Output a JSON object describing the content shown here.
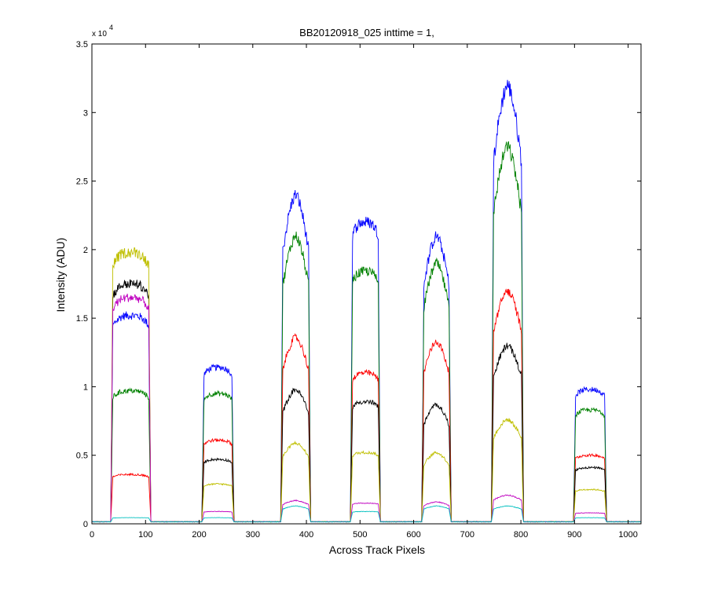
{
  "chart_data": {
    "type": "line",
    "title": "BB20120918_025 inttime = 1,",
    "xlabel": "Across Track Pixels",
    "ylabel": "Intensity (ADU)",
    "y_exponent_label": "x 10",
    "y_exponent": "4",
    "xlim": [
      0,
      1024
    ],
    "ylim": [
      0,
      35000
    ],
    "x_ticks": [
      0,
      100,
      200,
      300,
      400,
      500,
      600,
      700,
      800,
      900,
      1000
    ],
    "y_ticks": [
      0,
      5000,
      10000,
      15000,
      20000,
      25000,
      30000,
      35000
    ],
    "y_tick_labels": [
      "0",
      "0.5",
      "1",
      "1.5",
      "2",
      "2.5",
      "3",
      "3.5"
    ],
    "grid": false,
    "legend": "none",
    "baseline": 150,
    "segments": [
      {
        "x_start": 35,
        "x_end": 110,
        "shape": "flat"
      },
      {
        "x_start": 205,
        "x_end": 265,
        "shape": "flat"
      },
      {
        "x_start": 352,
        "x_end": 408,
        "shape": "peak"
      },
      {
        "x_start": 482,
        "x_end": 538,
        "shape": "flat"
      },
      {
        "x_start": 615,
        "x_end": 670,
        "shape": "peak"
      },
      {
        "x_start": 745,
        "x_end": 805,
        "shape": "peak"
      },
      {
        "x_start": 898,
        "x_end": 960,
        "shape": "flat"
      }
    ],
    "series": [
      {
        "color": "#0000ff",
        "levels": [
          15200,
          11400,
          24000,
          22000,
          21000,
          32000,
          9800
        ]
      },
      {
        "color": "#008000",
        "levels": [
          9700,
          9500,
          21000,
          18400,
          19000,
          27500,
          8300
        ]
      },
      {
        "color": "#ff0000",
        "levels": [
          3600,
          6100,
          13600,
          11000,
          13300,
          17000,
          5000
        ]
      },
      {
        "color": "#000000",
        "levels": [
          17500,
          4700,
          9800,
          8900,
          8700,
          13000,
          4100
        ]
      },
      {
        "color": "#bfbf00",
        "levels": [
          19800,
          2900,
          5900,
          5200,
          5200,
          7600,
          2500
        ]
      },
      {
        "color": "#bf00bf",
        "levels": [
          16500,
          900,
          1700,
          1500,
          1600,
          2100,
          800
        ]
      },
      {
        "color": "#00bfbf",
        "levels": [
          450,
          450,
          1300,
          900,
          1300,
          1300,
          450
        ]
      }
    ]
  }
}
